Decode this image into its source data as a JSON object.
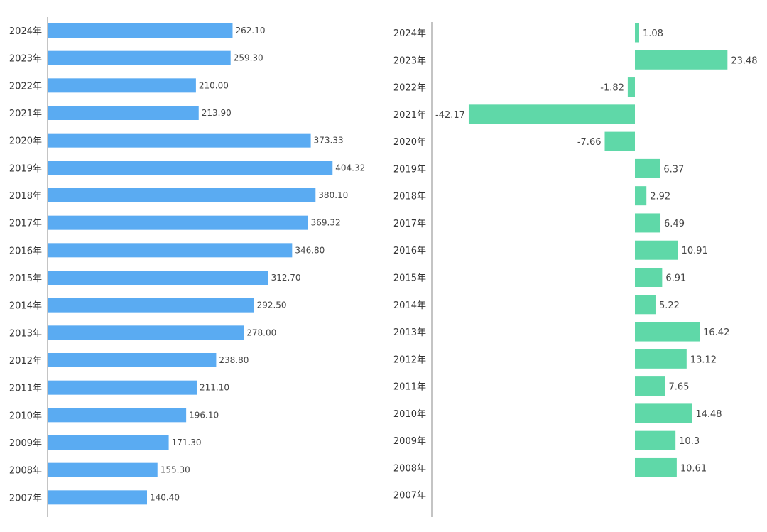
{
  "chart_data": [
    {
      "type": "bar",
      "orientation": "horizontal",
      "categories": [
        "2024年",
        "2023年",
        "2022年",
        "2021年",
        "2020年",
        "2019年",
        "2018年",
        "2017年",
        "2016年",
        "2015年",
        "2014年",
        "2013年",
        "2012年",
        "2011年",
        "2010年",
        "2009年",
        "2008年",
        "2007年"
      ],
      "series": [
        {
          "values": [
            262.1,
            259.3,
            210.0,
            213.9,
            373.33,
            404.32,
            380.1,
            369.32,
            346.8,
            312.7,
            292.5,
            278.0,
            238.8,
            211.1,
            196.1,
            171.3,
            155.3,
            140.4
          ],
          "labels": [
            "262.10",
            "259.30",
            "210.00",
            "213.90",
            "373.33",
            "404.32",
            "380.10",
            "369.32",
            "346.80",
            "312.70",
            "292.50",
            "278.00",
            "238.80",
            "211.10",
            "196.10",
            "171.30",
            "155.30",
            "140.40"
          ]
        }
      ],
      "xlim": [
        0,
        450
      ],
      "grid": false,
      "colors": {
        "bar": "#5aabf2"
      }
    },
    {
      "type": "bar",
      "orientation": "horizontal",
      "categories": [
        "2024年",
        "2023年",
        "2022年",
        "2021年",
        "2020年",
        "2019年",
        "2018年",
        "2017年",
        "2016年",
        "2015年",
        "2014年",
        "2013年",
        "2012年",
        "2011年",
        "2010年",
        "2009年",
        "2008年",
        "2007年"
      ],
      "series": [
        {
          "values": [
            1.08,
            23.48,
            -1.82,
            -42.17,
            -7.66,
            6.37,
            2.92,
            6.49,
            10.91,
            6.91,
            5.22,
            16.42,
            13.12,
            7.65,
            14.48,
            10.3,
            10.61,
            null
          ],
          "labels": [
            "1.08",
            "23.48",
            "-1.82",
            "-42.17",
            "-7.66",
            "6.37",
            "2.92",
            "6.49",
            "10.91",
            "6.91",
            "5.22",
            "16.42",
            "13.12",
            "7.65",
            "14.48",
            "10.3",
            "10.61",
            ""
          ]
        }
      ],
      "xlim": [
        -50,
        30
      ],
      "grid": false,
      "colors": {
        "bar": "#5fd8a8"
      }
    }
  ]
}
